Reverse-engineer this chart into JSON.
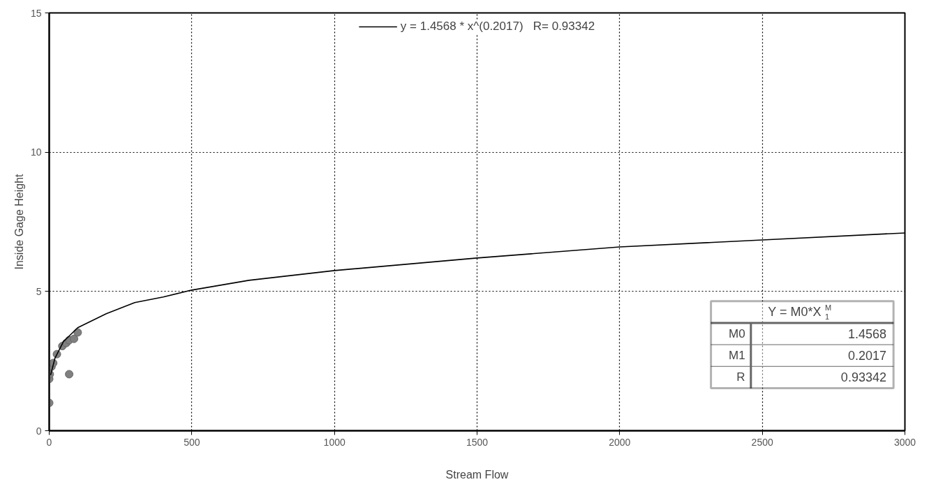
{
  "chart_data": {
    "type": "scatter",
    "xlabel": "Stream Flow",
    "ylabel": "Inside Gage Height",
    "xlim": [
      0,
      3000
    ],
    "xticks": [
      0,
      500,
      1000,
      1500,
      2000,
      2500,
      3000
    ],
    "ylim": [
      0,
      15
    ],
    "yticks": [
      0,
      5,
      10,
      15
    ],
    "grid": true,
    "legend": "top",
    "series": [
      {
        "marker": "circle",
        "color": "#808080",
        "x": [
          0,
          0,
          2,
          8,
          14,
          27,
          46,
          60,
          70,
          87,
          100,
          70
        ],
        "values": [
          1.0,
          1.86,
          2.03,
          2.3,
          2.43,
          2.75,
          3.04,
          3.15,
          3.25,
          3.3,
          3.53,
          2.03
        ]
      },
      {
        "type": "line",
        "marker": "none",
        "name": "y = 1.4568 * x^(0.2017)   R= 0.93342",
        "color": "#000000",
        "line_style": "solid",
        "x": [
          5,
          20,
          50,
          100,
          200,
          300,
          400,
          500,
          700,
          1000,
          1500,
          2000,
          2500,
          3000
        ],
        "values": [
          2.0,
          2.6,
          3.2,
          3.7,
          4.2,
          4.6,
          4.8,
          5.05,
          5.4,
          5.75,
          6.2,
          6.6,
          6.85,
          7.1
        ]
      }
    ],
    "annotations": [
      "Y = M0*X$^{M}$$_{1}$",
      "M0",
      "1.4568",
      "M1",
      "0.2017",
      "R",
      "0.93342"
    ]
  }
}
